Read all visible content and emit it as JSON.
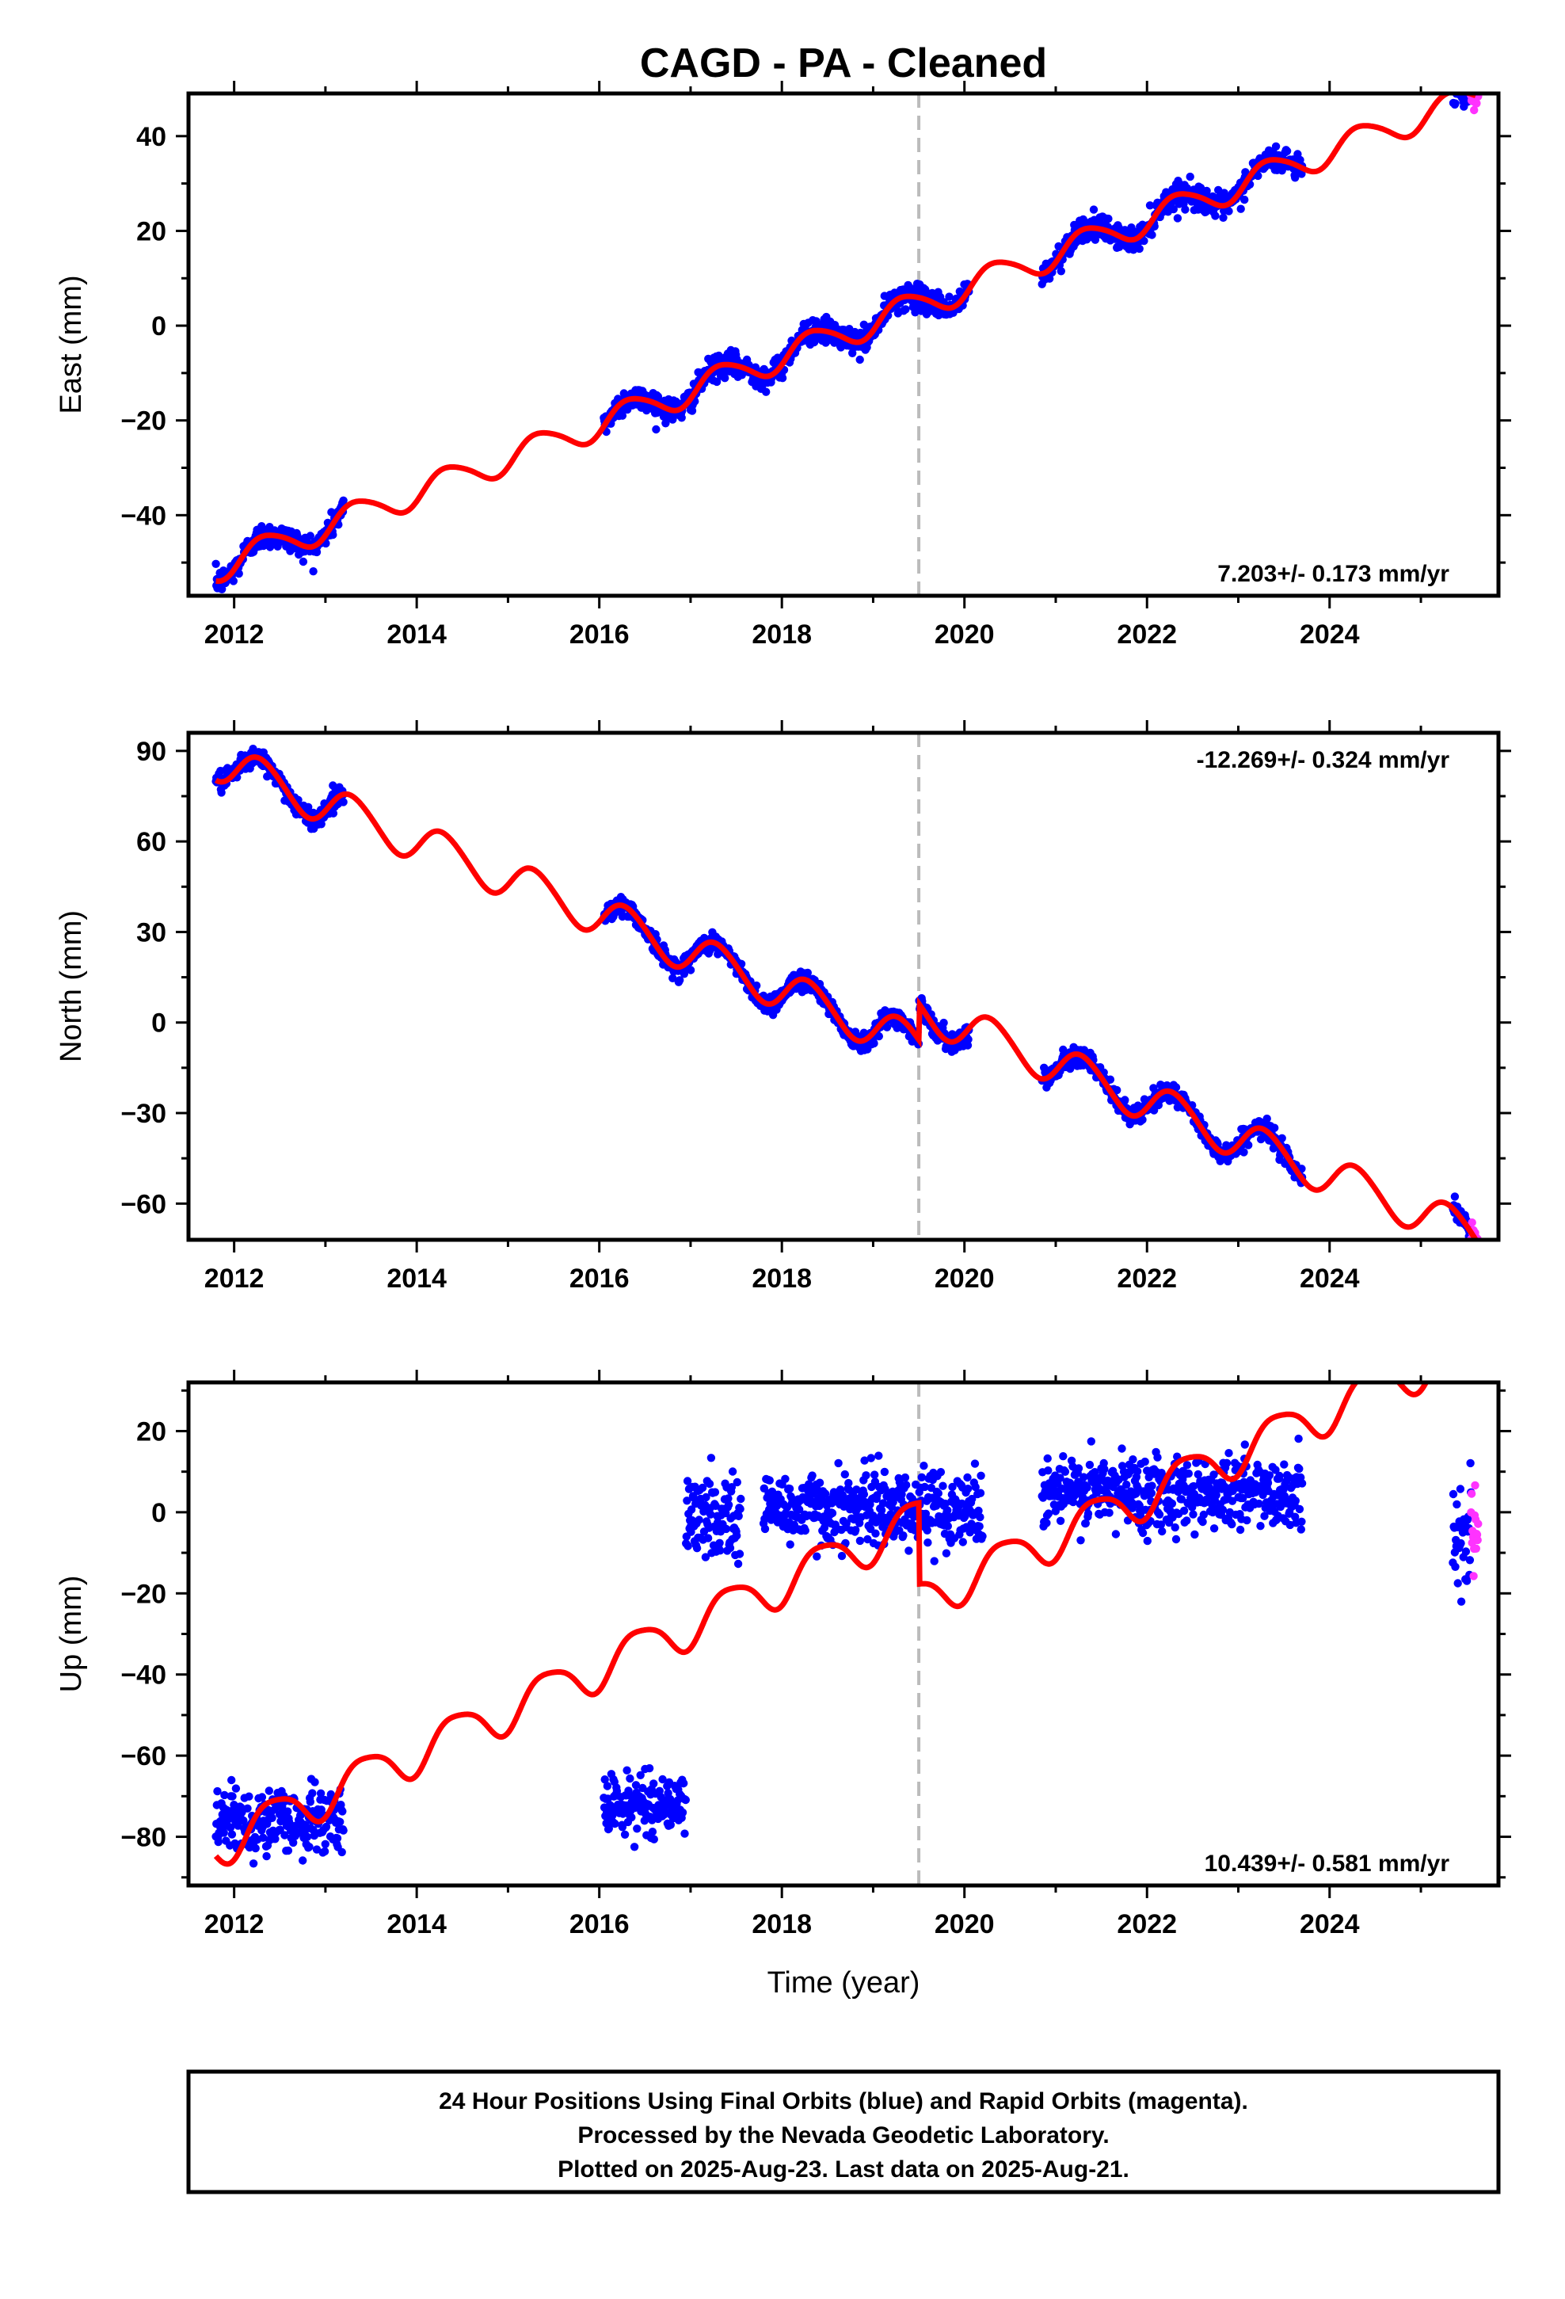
{
  "title": "CAGD  - PA - Cleaned",
  "x_axis_label": "Time (year)",
  "footnote": {
    "line1": "24 Hour Positions Using Final Orbits (blue) and Rapid Orbits (magenta).",
    "line2": "Processed by the Nevada Geodetic Laboratory.",
    "line3": "Plotted on 2025-Aug-23. Last data on 2025-Aug-21."
  },
  "colors": {
    "final_orbits": "#0000ff",
    "rapid_orbits": "#ff33ff",
    "model": "#ff0000",
    "event_line": "#bbbbbb"
  },
  "chart_data": [
    {
      "type": "scatter",
      "component": "east",
      "ylabel": "East (mm)",
      "xlim": [
        2011.5,
        2025.85
      ],
      "ylim": [
        -57,
        49
      ],
      "yticks": [
        -40,
        -20,
        0,
        20,
        40
      ],
      "xticks": [
        2012,
        2014,
        2016,
        2018,
        2020,
        2022,
        2024
      ],
      "rate_label": "7.203+/- 0.173 mm/yr",
      "event_line_x": 2019.5,
      "model": {
        "offset": -51,
        "rate": 7.203,
        "ann_amp": 3.0,
        "ann_phase": -0.6,
        "semi_amp": 0.4,
        "step_at": 2019.5,
        "step": 0
      },
      "final_segments": [
        [
          2011.8,
          2013.2
        ],
        [
          2016.05,
          2019.52
        ],
        [
          2019.52,
          2020.05
        ],
        [
          2020.85,
          2023.7
        ],
        [
          2025.35,
          2025.55
        ]
      ],
      "rapid_segments": [
        [
          2025.55,
          2025.63
        ]
      ],
      "scatter_sd": 1.3
    },
    {
      "type": "scatter",
      "component": "north",
      "ylabel": "North (mm)",
      "xlim": [
        2011.5,
        2025.85
      ],
      "ylim": [
        -72,
        96
      ],
      "yticks": [
        -60,
        -30,
        0,
        30,
        60,
        90
      ],
      "xticks": [
        2012,
        2014,
        2016,
        2018,
        2020,
        2022,
        2024
      ],
      "rate_label": "-12.269+/- 0.324 mm/yr",
      "event_line_x": 2019.5,
      "model": {
        "offset": 87,
        "rate": -12.269,
        "ann_amp": 6.5,
        "ann_phase": -0.3,
        "semi_amp": 0.6,
        "step_at": 2019.5,
        "step": 12
      },
      "final_segments": [
        [
          2011.8,
          2013.2
        ],
        [
          2016.05,
          2019.52
        ],
        [
          2019.52,
          2020.05
        ],
        [
          2020.85,
          2023.7
        ],
        [
          2025.35,
          2025.55
        ]
      ],
      "rapid_segments": [
        [
          2025.55,
          2025.63
        ]
      ],
      "scatter_sd": 1.6
    },
    {
      "type": "scatter",
      "component": "up",
      "ylabel": "Up (mm)",
      "xlim": [
        2011.5,
        2025.85
      ],
      "ylim": [
        -92,
        32
      ],
      "yticks": [
        -80,
        -60,
        -40,
        -20,
        0,
        20
      ],
      "xticks": [
        2012,
        2014,
        2016,
        2018,
        2020,
        2022,
        2024
      ],
      "rate_label": "10.439+/- 0.581 mm/yr",
      "event_line_x": 2019.5,
      "model": {
        "offset": -82,
        "rate": 10.439,
        "ann_amp": 5.2,
        "ann_phase": -1.2,
        "semi_amp": 1.0,
        "step_at": 2019.5,
        "step": -20
      },
      "final_clusters": [
        {
          "x": [
            2011.8,
            2013.2
          ],
          "mean": -76,
          "sd": 4.0
        },
        {
          "x": [
            2016.05,
            2016.95
          ],
          "mean": -72,
          "sd": 3.5
        },
        {
          "x": [
            2016.95,
            2017.55
          ],
          "mean": -1,
          "sd": 5.0
        },
        {
          "x": [
            2017.8,
            2020.2
          ],
          "mean": 1,
          "sd": 4.5
        },
        {
          "x": [
            2020.85,
            2023.7
          ],
          "mean": 5,
          "sd": 4.5
        },
        {
          "x": [
            2025.35,
            2025.55
          ],
          "mean": -6,
          "sd": 5.0
        }
      ],
      "rapid_clusters": [
        {
          "x": [
            2025.55,
            2025.63
          ],
          "mean": -3,
          "sd": 5.0
        }
      ]
    }
  ]
}
